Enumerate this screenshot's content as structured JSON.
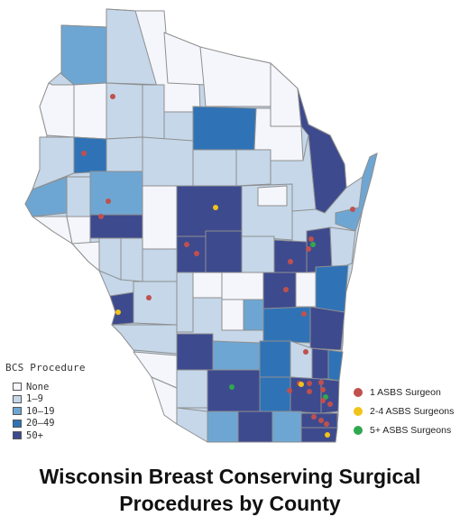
{
  "title_lines": [
    "Wisconsin Breast Conserving Surgical",
    "Procedures by County"
  ],
  "colors": {
    "none": "#f4f6fb",
    "c1_9": "#c5d7e9",
    "c10_19": "#6ea6d3",
    "c20_49": "#2f73b6",
    "c50p": "#3e4a8e",
    "stroke": "#8f8f8f",
    "dot_1": "#c0504d",
    "dot_2_4": "#f0c419",
    "dot_5p": "#2fa84f"
  },
  "bcs_legend": {
    "title": "BCS Procedure",
    "items": [
      {
        "label": "None",
        "color": "#f4f6fb"
      },
      {
        "label": "1–9",
        "color": "#c5d7e9"
      },
      {
        "label": "10–19",
        "color": "#6ea6d3"
      },
      {
        "label": "20–49",
        "color": "#2f73b6"
      },
      {
        "label": "50+",
        "color": "#3e4a8e"
      }
    ]
  },
  "surgeon_legend": {
    "items": [
      {
        "label": "1 ASBS Surgeon",
        "color": "#c0504d"
      },
      {
        "label": "2-4 ASBS Surgeons",
        "color": "#f0c419"
      },
      {
        "label": "5+ ASBS Surgeons",
        "color": "#2fa84f"
      }
    ]
  }
}
